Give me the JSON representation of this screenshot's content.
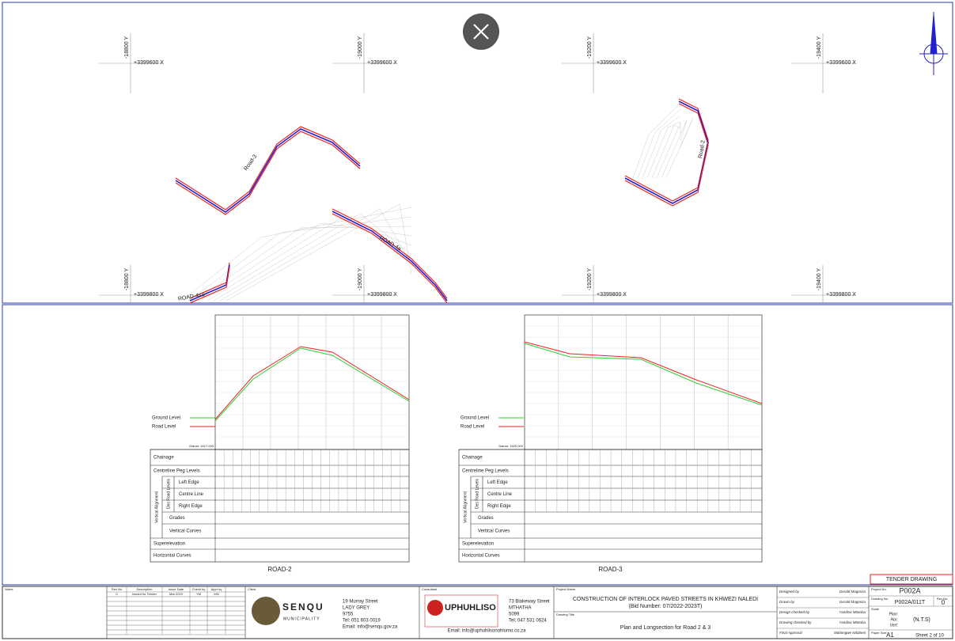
{
  "plan": {
    "grid_y_top": [
      "-18800 Y",
      "-19000 Y",
      "-19200 Y",
      "-19400 Y"
    ],
    "grid_x_top": [
      "+3399600 X",
      "+3399600 X",
      "+3399600 X",
      "+3399600 X"
    ],
    "grid_y_bottom": [
      "-18800 Y",
      "-19000 Y",
      "-19200 Y",
      "-19400 Y"
    ],
    "grid_x_bottom": [
      "+3399800 X",
      "+3399800 X",
      "+3399800 X",
      "+3399800 X"
    ],
    "road_labels": [
      "Road-3",
      "Road-2",
      "ROAD-4a",
      "ROAD-4sa"
    ]
  },
  "profiles": [
    {
      "name": "ROAD-2",
      "datum": "Datum: 1617.000"
    },
    {
      "name": "ROAD-3",
      "datum": "Datum: 1620.000"
    }
  ],
  "legend": [
    "Ground Level",
    "Road Level"
  ],
  "table_rows": [
    "Chainage",
    "Centreline Peg Levels",
    "Left Edge",
    "Centre Line",
    "Right Edge",
    "Grades",
    "Vertical Curves",
    "Superelevation",
    "Horizontal Curves"
  ],
  "group_labels": [
    "Vertical Alignment",
    "Des Road Levels"
  ],
  "stamp": "TENDER DRAWING",
  "title_block": {
    "notes": "Notes",
    "rev_headers": [
      "Rev No",
      "Description",
      "Issue Date",
      "Check by",
      "Appr by"
    ],
    "rev_row": [
      "0",
      "Issued for Tender",
      "Mar 2023",
      "YM",
      "MN"
    ],
    "client": {
      "label": "Client",
      "name": "SENQU",
      "sub": "MUNICIPALITY",
      "address": [
        "19 Murray Street",
        "LADY GREY",
        "9755",
        "Tel: 051 603 0019",
        "Email: info@senqu.gov.za"
      ]
    },
    "consultant": {
      "label": "Consultant",
      "name": "UPHUHLISO",
      "address": [
        "73 Blakeway Street",
        "MTHATHA",
        "5099",
        "Tel: 047 531 0624"
      ],
      "email": "Email: info@uphuhlisonohlumo.co.za"
    },
    "project_label": "Project Name",
    "project": "CONSTRUCTION OF INTERLOCK PAVED STREETS IN KHWEZI NALEDI",
    "bid": "(Bid Number: 07/2022-2023T)",
    "title_label": "Drawing Title",
    "drawing_title": "Plan and Longsection for Road 2 & 3",
    "signatures": [
      [
        "Designed by",
        "Gerald Magonza"
      ],
      [
        "Drawn by",
        "Gerald Magonza"
      ],
      [
        "Design checked by",
        "Yandisa Mtotoba"
      ],
      [
        "Drawing checked by",
        "Yandisa Mtotoba"
      ],
      [
        "Final Approval",
        "Mabongwe Ndabeni"
      ]
    ],
    "project_no_label": "Project No.",
    "project_no": "P002A",
    "drawing_no_label": "Drawing No.",
    "drawing_no": "P002A/011T",
    "rev_no_label": "Rev No.",
    "rev_no": "0",
    "scale_label": "Scale",
    "scale_lines": [
      "Plan:",
      "Hor:",
      "Vert:"
    ],
    "scale": "(N.T.S)",
    "paper_label": "Paper Size",
    "paper": "A1",
    "sheet": "Sheet 2 of 10"
  }
}
